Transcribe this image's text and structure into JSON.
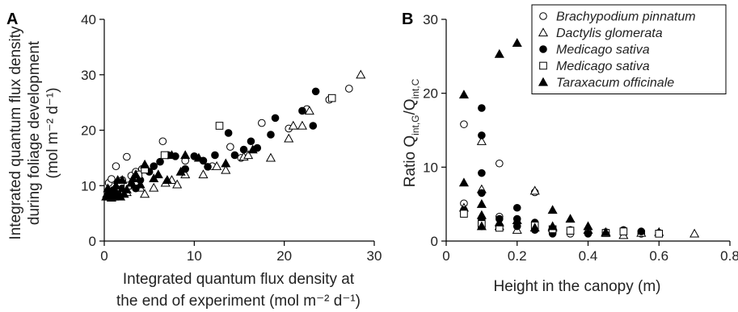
{
  "chart_data": [
    {
      "panel": "A",
      "type": "scatter",
      "xlabel": [
        "Integrated quantum flux density at",
        "the end of experiment (mol m⁻² d⁻¹)"
      ],
      "ylabel": [
        "Integrated quantum flux density",
        "during foliage development",
        "(mol m⁻² d⁻¹)"
      ],
      "xlim": [
        0,
        30
      ],
      "ylim": [
        0,
        40
      ],
      "xticks": [
        0,
        10,
        20,
        30
      ],
      "yticks": [
        0,
        10,
        20,
        30,
        40
      ],
      "grid": false,
      "series": [
        {
          "marker": "circle-open",
          "points": [
            [
              0.5,
              10.5
            ],
            [
              0.8,
              11.2
            ],
            [
              1.3,
              13.5
            ],
            [
              2,
              11
            ],
            [
              2.5,
              15.2
            ],
            [
              3,
              11.8
            ],
            [
              3.5,
              12.5
            ],
            [
              4.2,
              13
            ],
            [
              6.5,
              18
            ],
            [
              9,
              14.5
            ],
            [
              12,
              13.5
            ],
            [
              14,
              17
            ],
            [
              15.2,
              15
            ],
            [
              17.5,
              21.3
            ],
            [
              20.5,
              20.3
            ],
            [
              22.5,
              23.8
            ],
            [
              25,
              25.5
            ],
            [
              27.2,
              27.5
            ]
          ]
        },
        {
          "marker": "triangle-open",
          "points": [
            [
              1.2,
              9.2
            ],
            [
              2.5,
              8.8
            ],
            [
              4,
              9.6
            ],
            [
              4.5,
              8.5
            ],
            [
              5.5,
              9.6
            ],
            [
              6.8,
              10.5
            ],
            [
              7.5,
              11
            ],
            [
              8.1,
              10.2
            ],
            [
              9,
              12
            ],
            [
              11,
              12
            ],
            [
              12.5,
              13.5
            ],
            [
              13.5,
              12.8
            ],
            [
              15.5,
              15.2
            ],
            [
              16,
              15.5
            ],
            [
              18.5,
              15
            ],
            [
              20.5,
              18.5
            ],
            [
              21,
              20.8
            ],
            [
              22,
              20.8
            ],
            [
              22.8,
              23.5
            ],
            [
              28.5,
              30
            ]
          ]
        },
        {
          "marker": "circle-filled",
          "points": [
            [
              0.5,
              8.5
            ],
            [
              1,
              9.2
            ],
            [
              1.5,
              8.5
            ],
            [
              2,
              9.5
            ],
            [
              3,
              10.2
            ],
            [
              3.5,
              9.5
            ],
            [
              4,
              11
            ],
            [
              5,
              12.5
            ],
            [
              5.5,
              13.5
            ],
            [
              6.2,
              14.3
            ],
            [
              7.1,
              15.5
            ],
            [
              7.9,
              15.3
            ],
            [
              9,
              13
            ],
            [
              10,
              15.3
            ],
            [
              11,
              14.5
            ],
            [
              11.5,
              13.4
            ],
            [
              12.3,
              15.5
            ],
            [
              13.8,
              19.5
            ],
            [
              14.5,
              15.5
            ],
            [
              15.5,
              16.5
            ],
            [
              16.3,
              18
            ],
            [
              17,
              16.8
            ],
            [
              18.5,
              19.2
            ],
            [
              19,
              22.2
            ],
            [
              22,
              23.5
            ],
            [
              23.2,
              20.8
            ],
            [
              23.5,
              27
            ]
          ]
        },
        {
          "marker": "square-open",
          "points": [
            [
              2.6,
              10
            ],
            [
              3.8,
              12
            ],
            [
              4.5,
              12.9
            ],
            [
              6.7,
              15.5
            ],
            [
              12.8,
              20.8
            ],
            [
              25.3,
              25.8
            ]
          ]
        },
        {
          "marker": "triangle-filled",
          "points": [
            [
              0.2,
              8
            ],
            [
              0.3,
              8.5
            ],
            [
              0.4,
              9.5
            ],
            [
              0.6,
              8
            ],
            [
              0.8,
              7.8
            ],
            [
              1,
              8.3
            ],
            [
              1.1,
              8
            ],
            [
              1.3,
              10
            ],
            [
              1.5,
              11
            ],
            [
              1.8,
              8
            ],
            [
              2,
              11
            ],
            [
              2.2,
              8.5
            ],
            [
              2.5,
              9.3
            ],
            [
              3,
              10.5
            ],
            [
              3.2,
              11.3
            ],
            [
              3.5,
              12
            ],
            [
              4,
              10.2
            ],
            [
              4.5,
              13.8
            ],
            [
              5.5,
              11.3
            ],
            [
              6,
              12
            ],
            [
              7,
              11
            ],
            [
              7.5,
              15.5
            ],
            [
              8.5,
              12.5
            ],
            [
              9,
              15.5
            ],
            [
              10.5,
              15
            ],
            [
              13.5,
              14
            ],
            [
              16.5,
              16.5
            ]
          ]
        }
      ]
    },
    {
      "panel": "B",
      "type": "scatter",
      "xlabel": [
        "Height in the canopy (m)"
      ],
      "ylabel": [
        "Ratio Q",
        "int,G",
        "/Q",
        "int,C"
      ],
      "xlim": [
        0,
        0.8
      ],
      "ylim": [
        0,
        30
      ],
      "xticks": [
        0,
        0.2,
        0.4,
        0.6,
        0.8
      ],
      "xtick_labels": [
        "0",
        "0.2",
        "0.4",
        "0.6",
        "0.8"
      ],
      "yticks": [
        0,
        10,
        20,
        30
      ],
      "grid": false,
      "legend_position": "top-right",
      "legend": [
        {
          "marker": "circle-open",
          "label": "Brachypodium pinnatum"
        },
        {
          "marker": "triangle-open",
          "label": "Dactylis glomerata"
        },
        {
          "marker": "circle-filled",
          "label": "Medicago sativa"
        },
        {
          "marker": "square-open",
          "label": "Medicago sativa"
        },
        {
          "marker": "triangle-filled",
          "label": "Taraxacum officinale"
        }
      ],
      "series": [
        {
          "marker": "circle-open",
          "points": [
            [
              0.05,
              15.8
            ],
            [
              0.05,
              5.1
            ],
            [
              0.1,
              2.5
            ],
            [
              0.15,
              10.5
            ],
            [
              0.15,
              3.3
            ],
            [
              0.25,
              6.6
            ],
            [
              0.3,
              1.3
            ],
            [
              0.35,
              1
            ],
            [
              0.45,
              1.2
            ],
            [
              0.55,
              1
            ]
          ]
        },
        {
          "marker": "triangle-open",
          "points": [
            [
              0.05,
              4.5
            ],
            [
              0.1,
              13.5
            ],
            [
              0.1,
              7
            ],
            [
              0.15,
              2
            ],
            [
              0.2,
              1.5
            ],
            [
              0.25,
              6.8
            ],
            [
              0.3,
              1.8
            ],
            [
              0.4,
              1.5
            ],
            [
              0.45,
              1.1
            ],
            [
              0.5,
              0.8
            ],
            [
              0.55,
              1.1
            ],
            [
              0.6,
              1.2
            ],
            [
              0.7,
              1
            ]
          ]
        },
        {
          "marker": "circle-filled",
          "points": [
            [
              0.05,
              4.2
            ],
            [
              0.1,
              18
            ],
            [
              0.1,
              14.3
            ],
            [
              0.1,
              9.2
            ],
            [
              0.1,
              6.5
            ],
            [
              0.1,
              3
            ],
            [
              0.1,
              2
            ],
            [
              0.15,
              3
            ],
            [
              0.15,
              2
            ],
            [
              0.2,
              4.5
            ],
            [
              0.2,
              3
            ],
            [
              0.2,
              2
            ],
            [
              0.25,
              2.5
            ],
            [
              0.25,
              1.5
            ],
            [
              0.3,
              1
            ],
            [
              0.35,
              1.5
            ],
            [
              0.4,
              1
            ],
            [
              0.45,
              1.2
            ],
            [
              0.5,
              1.5
            ],
            [
              0.55,
              1.3
            ],
            [
              0.6,
              1.1
            ]
          ]
        },
        {
          "marker": "square-open",
          "points": [
            [
              0.05,
              3.7
            ],
            [
              0.1,
              2.3
            ],
            [
              0.15,
              1.8
            ],
            [
              0.25,
              2.1
            ],
            [
              0.3,
              1.6
            ],
            [
              0.35,
              1.4
            ],
            [
              0.45,
              1.1
            ],
            [
              0.5,
              1.3
            ],
            [
              0.6,
              1
            ]
          ]
        },
        {
          "marker": "triangle-filled",
          "points": [
            [
              0.05,
              19.8
            ],
            [
              0.05,
              7.9
            ],
            [
              0.1,
              5
            ],
            [
              0.1,
              3.5
            ],
            [
              0.1,
              2
            ],
            [
              0.15,
              25.3
            ],
            [
              0.15,
              2.5
            ],
            [
              0.2,
              26.8
            ],
            [
              0.2,
              2.8
            ],
            [
              0.25,
              1.8
            ],
            [
              0.3,
              4.2
            ],
            [
              0.3,
              2
            ],
            [
              0.35,
              3
            ],
            [
              0.4,
              2
            ],
            [
              0.45,
              1.2
            ]
          ]
        }
      ]
    }
  ]
}
